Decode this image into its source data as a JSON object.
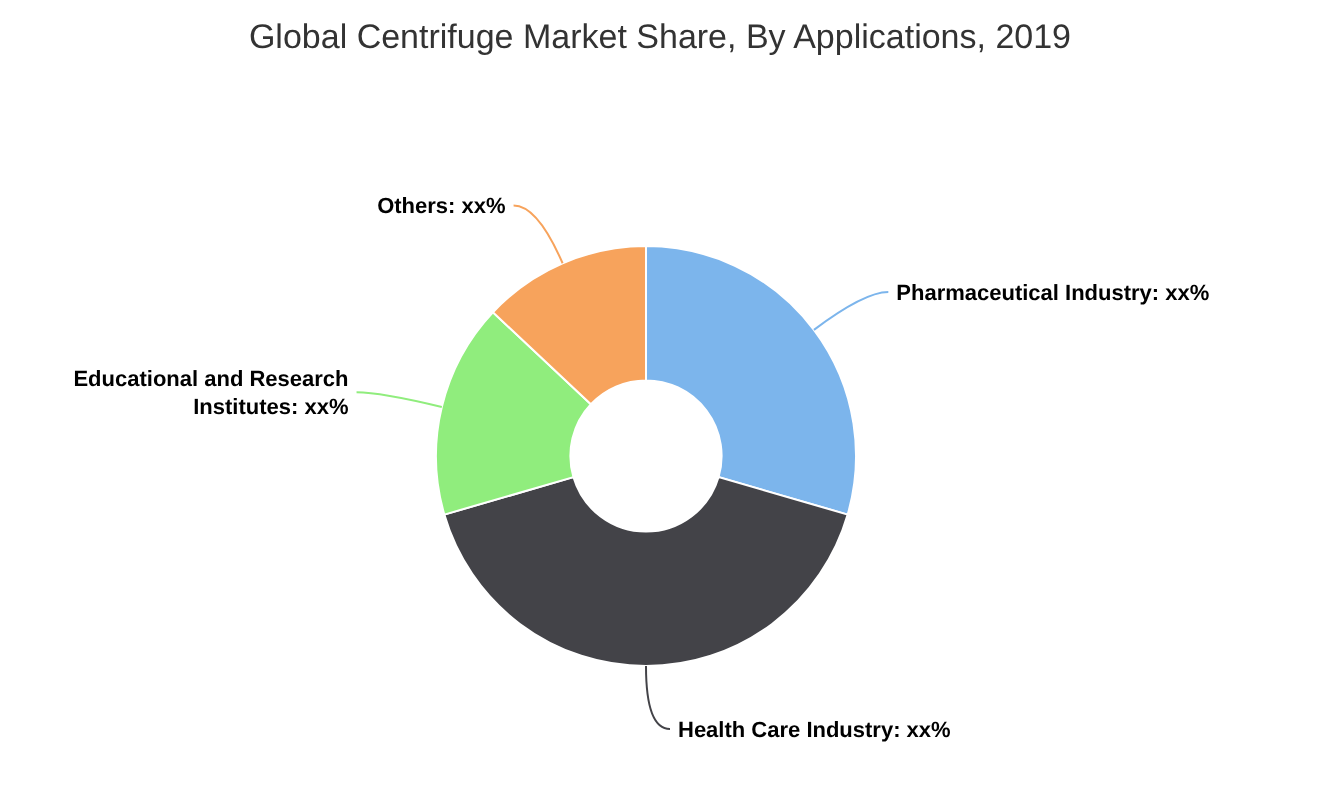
{
  "chart_data": {
    "type": "donut",
    "title": "Global Centrifuge Market Share, By Applications, 2019",
    "categories": [
      "Pharmaceutical Industry: xx%",
      "Health Care Industry: xx%",
      "Educational and Research Institutes: xx%",
      "Others: xx%"
    ],
    "values": [
      29.5,
      41,
      16.5,
      13
    ],
    "colors": [
      "#7cb5ec",
      "#434348",
      "#90ed7d",
      "#f7a35c"
    ]
  }
}
